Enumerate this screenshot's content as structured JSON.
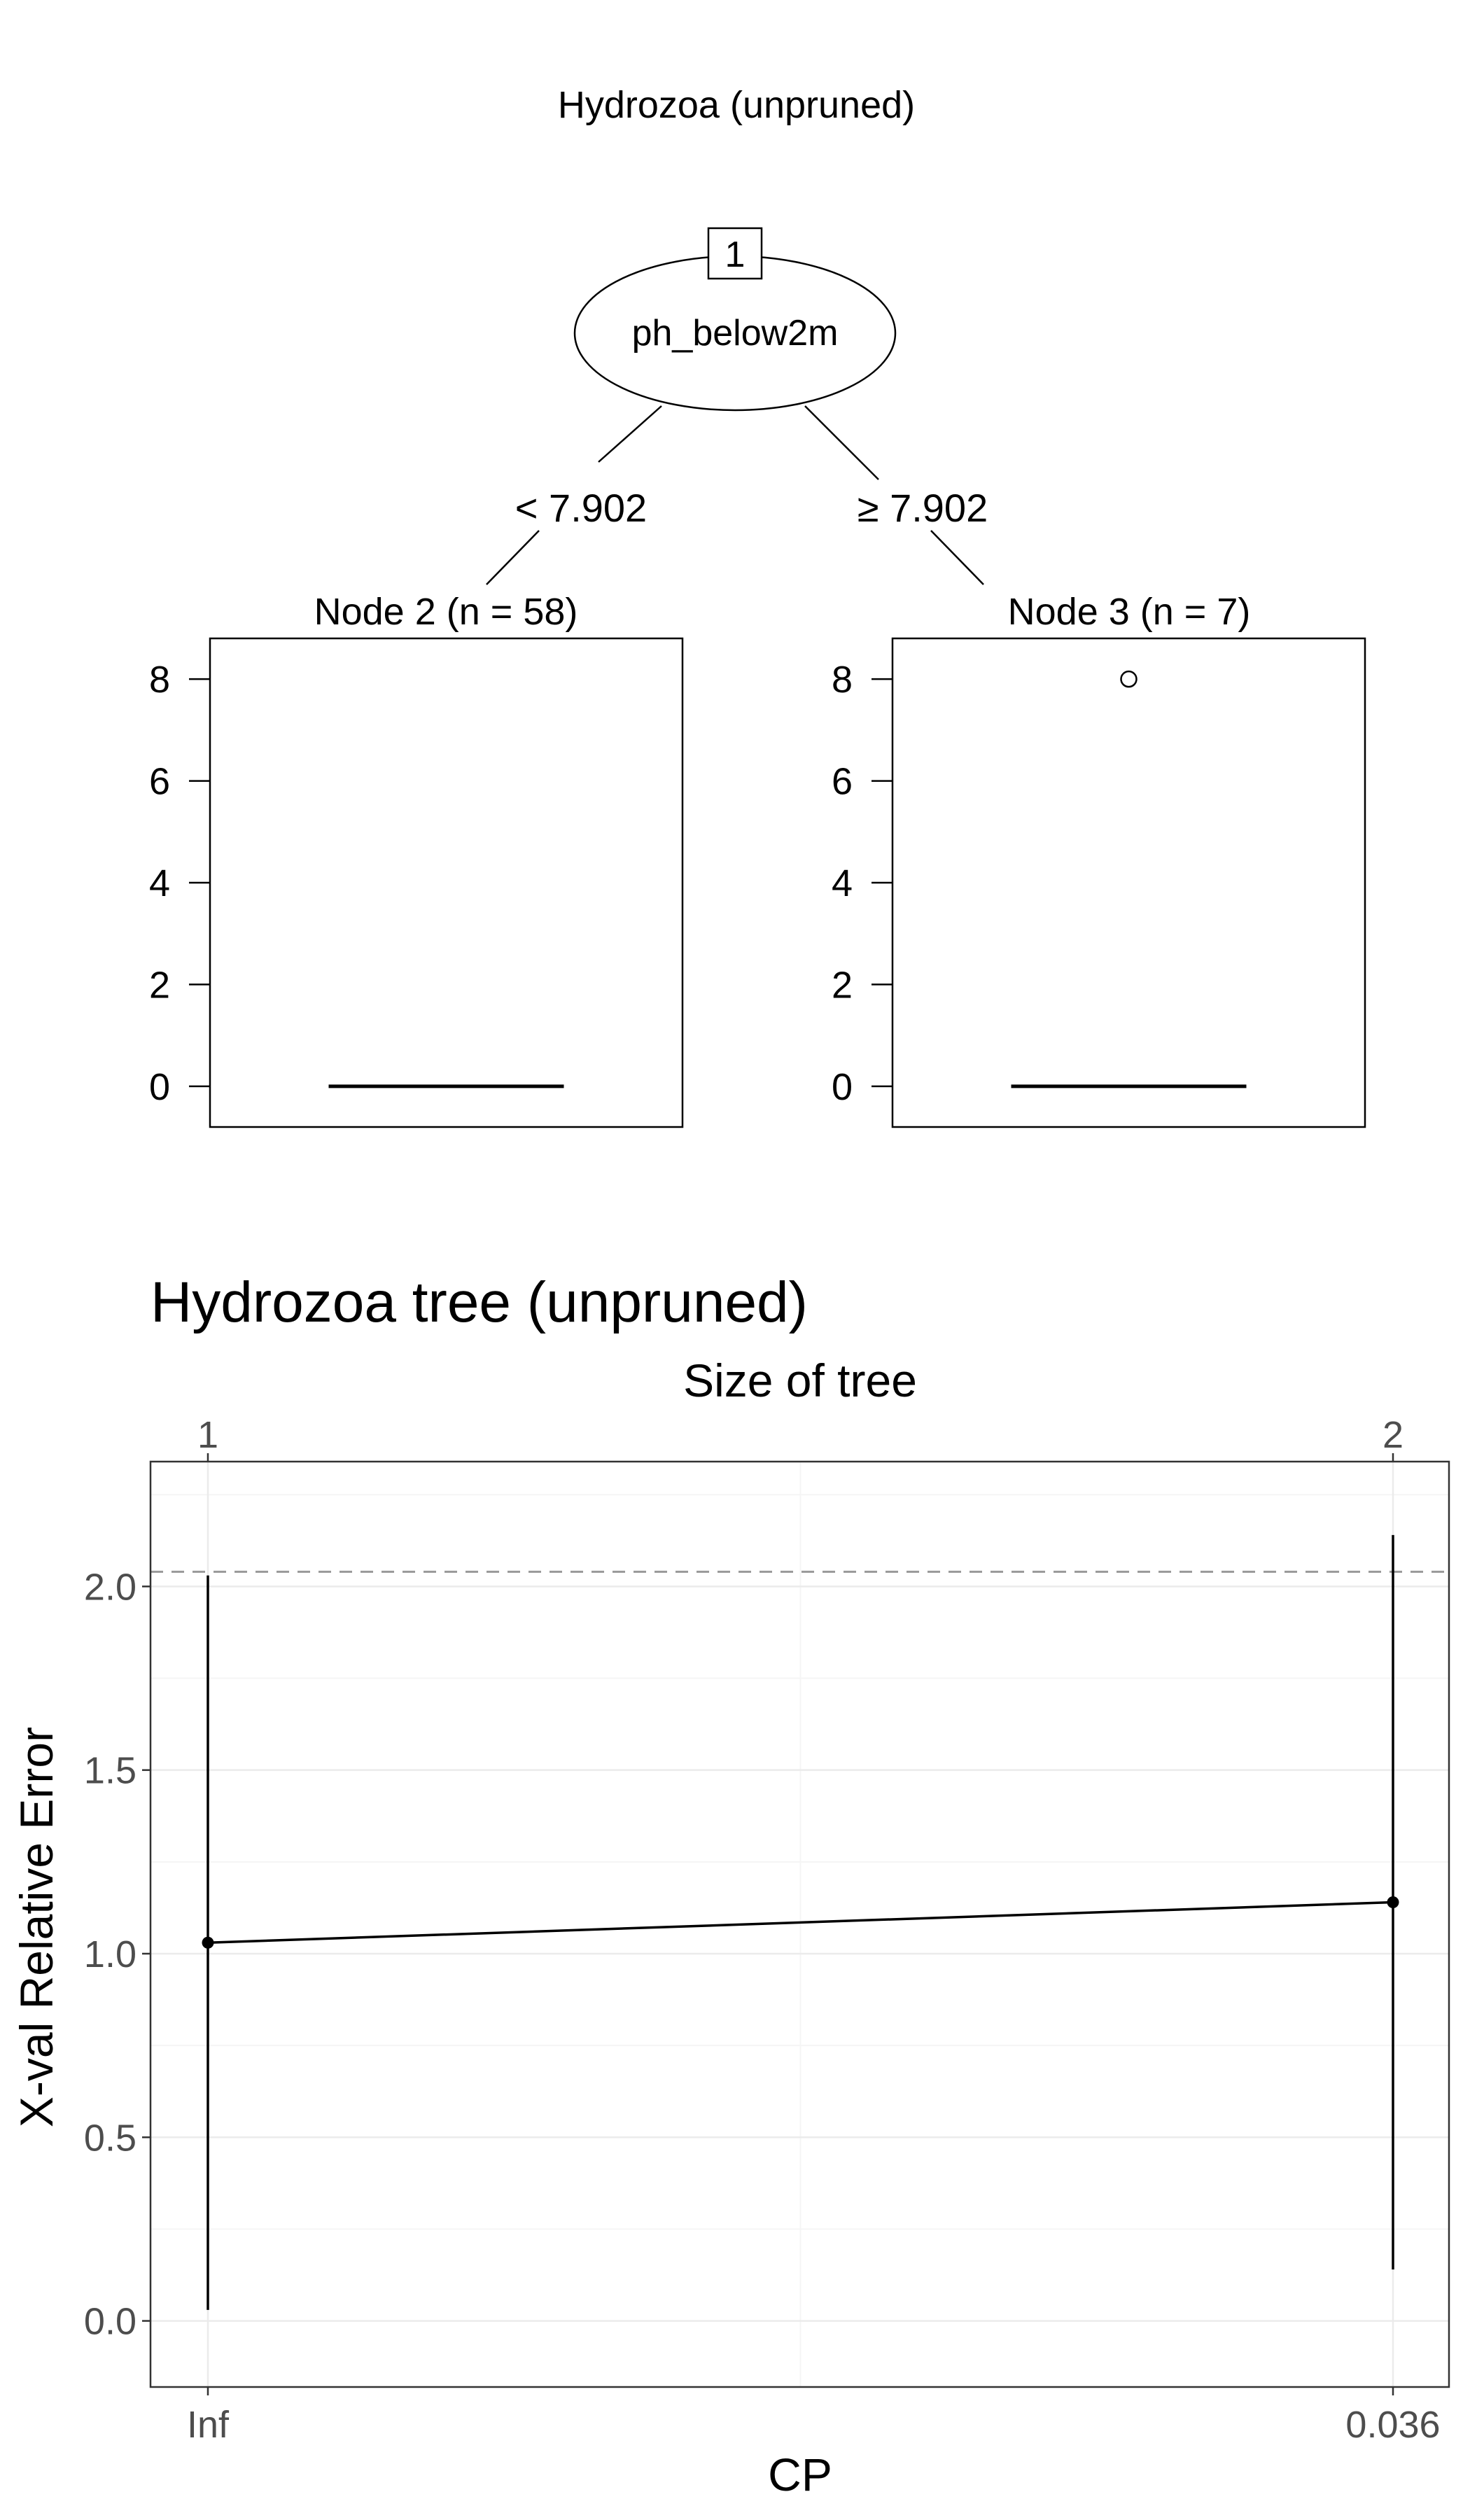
{
  "colors": {
    "ink": "#000000",
    "axis_text": "#4d4d4d",
    "grid_major": "#ebebeb",
    "grid_minor": "#f5f5f5",
    "panel_border": "#333333",
    "reference_line": "#999999"
  },
  "chart_data": [
    {
      "type": "tree",
      "title": "Hydrozoa (unpruned)",
      "root": {
        "id": "1",
        "variable": "ph_below2m"
      },
      "splits": [
        {
          "label": "< 7.902",
          "child": "2"
        },
        {
          "label": "≥ 7.902",
          "child": "3"
        }
      ],
      "leaves": [
        {
          "id": "2",
          "label": "Node 2 (n = 58)",
          "yticks": [
            0,
            2,
            4,
            6,
            8
          ],
          "ylim": [
            -0.8,
            8.8
          ],
          "median": 0,
          "outliers": []
        },
        {
          "id": "3",
          "label": "Node 3 (n = 7)",
          "yticks": [
            0,
            2,
            4,
            6,
            8
          ],
          "ylim": [
            -0.8,
            8.8
          ],
          "median": 0,
          "outliers": [
            8
          ]
        }
      ]
    },
    {
      "type": "line",
      "title": "Hydrozoa tree (unpruned)",
      "top_axis_label": "Size of tree",
      "top_ticks": [
        "1",
        "2"
      ],
      "xlabel": "CP",
      "ylabel": "X-val Relative Error",
      "x_categories": [
        "Inf",
        "0.036"
      ],
      "y_ticks": [
        0.0,
        0.5,
        1.0,
        1.5,
        2.0
      ],
      "ylim": [
        -0.18,
        2.34
      ],
      "reference_line": 2.04,
      "grid": true,
      "points": [
        {
          "x": "Inf",
          "y": 1.03,
          "lower": 0.03,
          "upper": 2.03
        },
        {
          "x": "0.036",
          "y": 1.14,
          "lower": 0.14,
          "upper": 2.14
        }
      ]
    }
  ]
}
